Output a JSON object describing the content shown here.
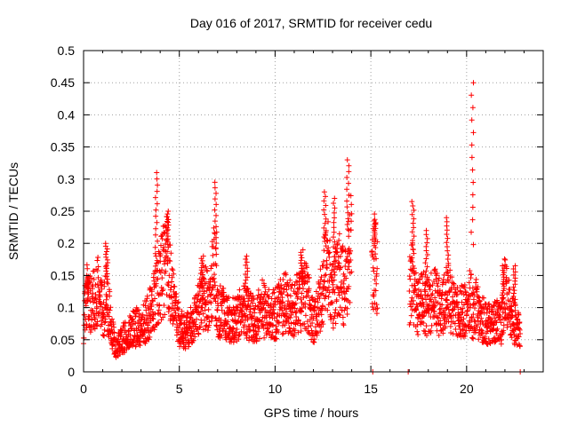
{
  "chart_data": {
    "type": "scatter",
    "title": "Day 016 of 2017, SRMTID for receiver cedu",
    "xlabel": "GPS time / hours",
    "ylabel": "SRMTID / TECUs",
    "xlim": [
      0,
      24
    ],
    "ylim": [
      0,
      0.5
    ],
    "x_ticks": [
      0,
      5,
      10,
      15,
      20
    ],
    "x_tick_labels": [
      "0",
      "5",
      "10",
      "15",
      "20"
    ],
    "y_ticks": [
      0,
      0.05,
      0.1,
      0.15,
      0.2,
      0.25,
      0.3,
      0.35,
      0.4,
      0.45,
      0.5
    ],
    "y_tick_labels": [
      "0",
      "0.05",
      "0.1",
      "0.15",
      "0.2",
      "0.25",
      "0.3",
      "0.35",
      "0.4",
      "0.45",
      "0.5"
    ],
    "grid": true,
    "marker": "+",
    "color": "#ff0000",
    "series": [
      {
        "name": "SRMTID",
        "profile_hours": [
          0,
          0.2,
          0.4,
          0.7,
          1.0,
          1.2,
          1.5,
          1.7,
          2.0,
          2.3,
          2.6,
          3.0,
          3.3,
          3.6,
          3.8,
          4.0,
          4.2,
          4.4,
          4.6,
          5.0,
          5.3,
          5.6,
          6.0,
          6.3,
          6.6,
          6.8,
          7.0,
          7.3,
          7.6,
          8.0,
          8.3,
          8.6,
          9.0,
          9.3,
          9.6,
          10.0,
          10.3,
          10.6,
          11.0,
          11.3,
          11.6,
          12.0,
          12.3,
          12.6,
          12.8,
          13.0,
          13.2,
          13.4,
          13.6,
          13.8,
          14.0,
          15.1,
          15.2,
          15.3,
          17.0,
          17.2,
          17.4,
          17.7,
          18.0,
          18.3,
          18.6,
          19.0,
          19.3,
          19.6,
          20.0,
          20.2,
          20.3,
          20.5,
          20.8,
          21.0,
          21.3,
          21.6,
          21.8,
          22.0,
          22.3,
          22.6,
          22.8
        ],
        "profile_values": [
          0.08,
          0.12,
          0.1,
          0.13,
          0.09,
          0.12,
          0.06,
          0.04,
          0.05,
          0.06,
          0.07,
          0.07,
          0.08,
          0.1,
          0.13,
          0.14,
          0.16,
          0.17,
          0.12,
          0.07,
          0.06,
          0.07,
          0.1,
          0.12,
          0.1,
          0.17,
          0.1,
          0.09,
          0.08,
          0.08,
          0.1,
          0.09,
          0.08,
          0.1,
          0.09,
          0.09,
          0.1,
          0.11,
          0.1,
          0.11,
          0.12,
          0.08,
          0.1,
          0.15,
          0.17,
          0.12,
          0.14,
          0.16,
          0.12,
          0.16,
          0.22,
          0.15,
          0.18,
          0.15,
          0.13,
          0.14,
          0.1,
          0.11,
          0.1,
          0.12,
          0.1,
          0.12,
          0.1,
          0.09,
          0.1,
          0.12,
          0.09,
          0.1,
          0.08,
          0.08,
          0.07,
          0.08,
          0.07,
          0.13,
          0.09,
          0.07,
          0.06
        ],
        "data_gaps_hours": [
          [
            14.0,
            15.05
          ],
          [
            15.35,
            17.0
          ]
        ],
        "peaks": [
          {
            "x": 0.2,
            "y": 0.15
          },
          {
            "x": 1.2,
            "y": 0.2
          },
          {
            "x": 3.8,
            "y": 0.31
          },
          {
            "x": 4.4,
            "y": 0.25
          },
          {
            "x": 6.2,
            "y": 0.18
          },
          {
            "x": 6.9,
            "y": 0.295
          },
          {
            "x": 8.5,
            "y": 0.18
          },
          {
            "x": 11.4,
            "y": 0.19
          },
          {
            "x": 12.6,
            "y": 0.28
          },
          {
            "x": 13.1,
            "y": 0.27
          },
          {
            "x": 13.8,
            "y": 0.33
          },
          {
            "x": 15.2,
            "y": 0.235
          },
          {
            "x": 17.2,
            "y": 0.265
          },
          {
            "x": 17.9,
            "y": 0.22
          },
          {
            "x": 19.0,
            "y": 0.24
          },
          {
            "x": 20.3,
            "y": 0.45
          },
          {
            "x": 21.9,
            "y": 0.165
          },
          {
            "x": 22.5,
            "y": 0.165
          }
        ],
        "zero_points": [
          {
            "x": 15.1,
            "y": 0.0
          },
          {
            "x": 16.95,
            "y": 0.0
          },
          {
            "x": 22.8,
            "y": 0.0
          }
        ]
      }
    ]
  }
}
